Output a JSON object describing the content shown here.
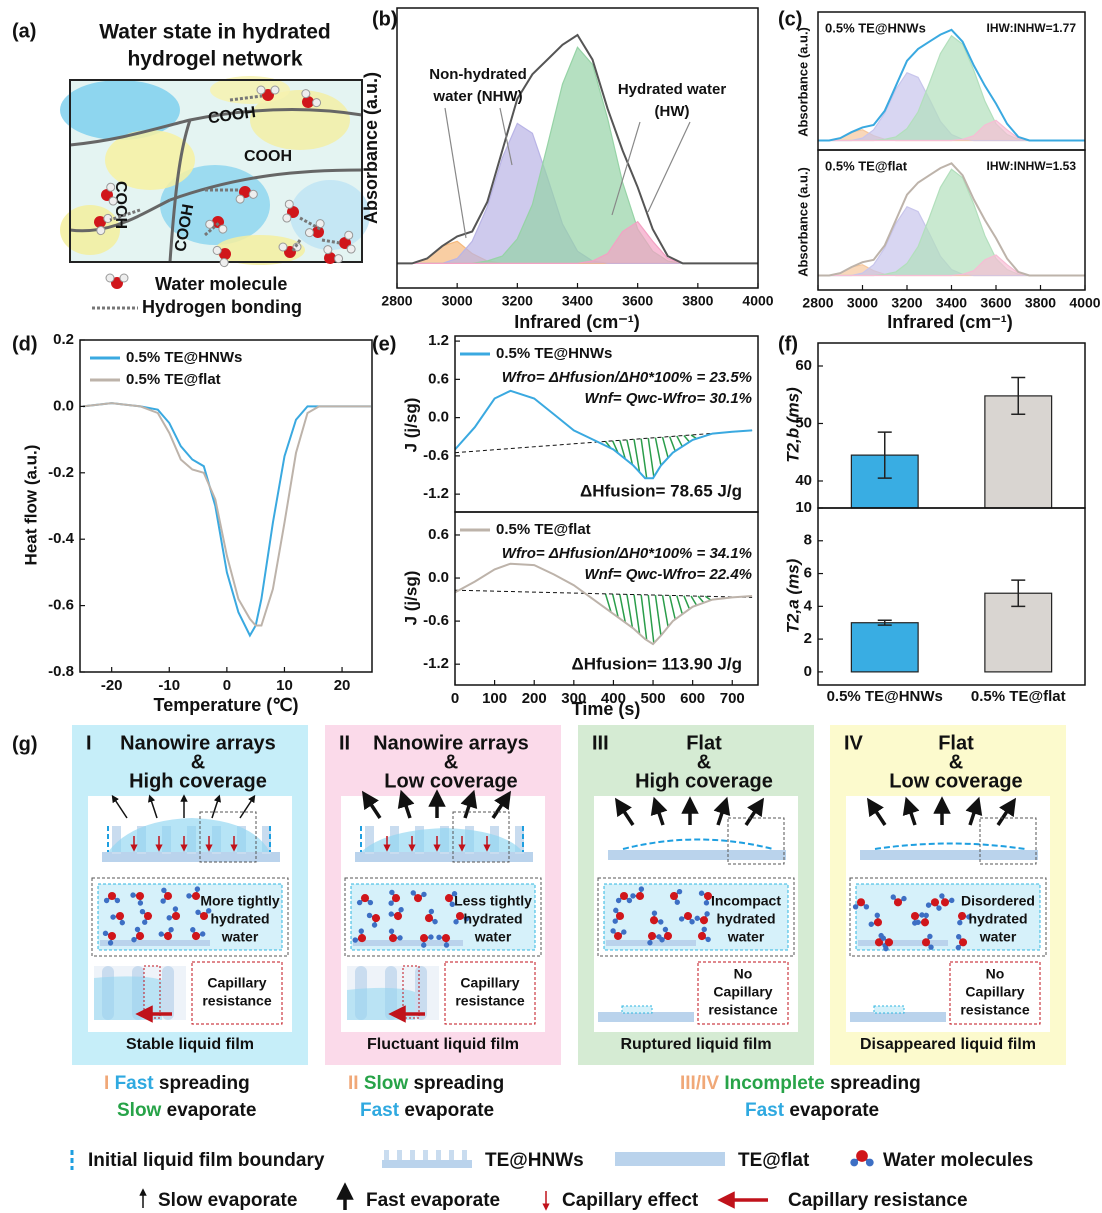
{
  "panel_labels": [
    "(a)",
    "(b)",
    "(c)",
    "(d)",
    "(e)",
    "(f)",
    "(g)"
  ],
  "network": {
    "title": [
      "Water state in hydrated",
      "hydrogel network"
    ],
    "groups": [
      "COOH",
      "COOH",
      "COOH",
      "COOH"
    ],
    "legend": [
      "Water molecule",
      "Hydrogen bonding"
    ]
  },
  "chart_data": [
    {
      "type": "spectrum",
      "x_label": "Infrared (cm⁻¹)",
      "y_label": "Absorbance (a.u.)",
      "x": [
        2800,
        2850,
        2900,
        2950,
        3000,
        3050,
        3100,
        3150,
        3200,
        3250,
        3300,
        3350,
        3400,
        3450,
        3500,
        3550,
        3600,
        3650,
        3700,
        3750,
        3800,
        3850,
        3900,
        3950,
        4000
      ],
      "xlim": [
        2800,
        4000
      ],
      "xticks": [
        2800,
        3000,
        3200,
        3400,
        3600,
        3800,
        4000
      ],
      "ylim": [
        -0.1,
        1.04
      ],
      "series": [
        {
          "color": "#f6b97c",
          "values": [
            0,
            0,
            0.02,
            0.07,
            0.09,
            0.04,
            0.01,
            0,
            0,
            0,
            0,
            0,
            0,
            0,
            0,
            0,
            0,
            0,
            0,
            0,
            0,
            0,
            0,
            0,
            0
          ]
        },
        {
          "color": "#b9b4e6",
          "values": [
            0,
            0,
            0,
            0,
            0.02,
            0.09,
            0.23,
            0.43,
            0.57,
            0.53,
            0.35,
            0.16,
            0.05,
            0.01,
            0,
            0,
            0,
            0,
            0,
            0,
            0,
            0,
            0,
            0,
            0
          ]
        },
        {
          "color": "#96d3a6",
          "values": [
            0,
            0,
            0,
            0,
            0,
            0,
            0.01,
            0.03,
            0.1,
            0.24,
            0.48,
            0.73,
            0.88,
            0.81,
            0.59,
            0.33,
            0.14,
            0.05,
            0.01,
            0,
            0,
            0,
            0,
            0,
            0
          ]
        },
        {
          "color": "#f3a2c4",
          "values": [
            0,
            0,
            0,
            0,
            0,
            0,
            0,
            0,
            0,
            0,
            0,
            0,
            0,
            0.01,
            0.04,
            0.13,
            0.17,
            0.09,
            0.02,
            0,
            0,
            0,
            0,
            0,
            0
          ]
        }
      ],
      "total": {
        "color": "#555555",
        "values": [
          0,
          0,
          0.02,
          0.07,
          0.11,
          0.13,
          0.25,
          0.46,
          0.67,
          0.77,
          0.83,
          0.89,
          0.93,
          0.83,
          0.63,
          0.46,
          0.31,
          0.14,
          0.03,
          0,
          0,
          0,
          0,
          0,
          0
        ]
      },
      "annotations": [
        [
          "Non-hydrated",
          "water (NHW)"
        ],
        [
          "Hydrated water",
          "(HW)"
        ]
      ]
    },
    {
      "type": "spectrum",
      "y_label": "Absorbance (a.u.)",
      "x": [
        2800,
        2850,
        2900,
        2950,
        3000,
        3050,
        3100,
        3150,
        3200,
        3250,
        3300,
        3350,
        3400,
        3450,
        3500,
        3550,
        3600,
        3650,
        3700,
        3750,
        3800,
        3850,
        3900,
        3950,
        4000
      ],
      "xlim": [
        2800,
        4000
      ],
      "ylim": [
        -0.08,
        1.08
      ],
      "series": [
        {
          "color": "#f6c79c",
          "values": [
            0,
            0,
            0.02,
            0.07,
            0.09,
            0.04,
            0.01,
            0,
            0,
            0,
            0,
            0,
            0,
            0,
            0,
            0,
            0,
            0,
            0,
            0,
            0,
            0,
            0,
            0,
            0
          ]
        },
        {
          "color": "#c8c5ec",
          "values": [
            0,
            0,
            0,
            0,
            0.02,
            0.09,
            0.23,
            0.43,
            0.57,
            0.53,
            0.35,
            0.16,
            0.05,
            0.01,
            0,
            0,
            0,
            0,
            0,
            0,
            0,
            0,
            0,
            0,
            0
          ]
        },
        {
          "color": "#b2dfbc",
          "values": [
            0,
            0,
            0,
            0,
            0,
            0,
            0.01,
            0.03,
            0.1,
            0.24,
            0.48,
            0.73,
            0.88,
            0.81,
            0.59,
            0.33,
            0.14,
            0.05,
            0.01,
            0,
            0,
            0,
            0,
            0,
            0
          ]
        },
        {
          "color": "#f6bdd4",
          "values": [
            0,
            0,
            0,
            0,
            0,
            0,
            0,
            0,
            0,
            0,
            0,
            0,
            0,
            0.01,
            0.04,
            0.13,
            0.17,
            0.09,
            0.02,
            0,
            0,
            0,
            0,
            0,
            0
          ]
        }
      ],
      "total": {
        "color": "#3aa9e0",
        "values": [
          0,
          0,
          0.02,
          0.07,
          0.11,
          0.13,
          0.25,
          0.46,
          0.67,
          0.77,
          0.83,
          0.89,
          0.93,
          0.83,
          0.63,
          0.46,
          0.31,
          0.14,
          0.03,
          0,
          0,
          0,
          0,
          0,
          0
        ]
      },
      "annotations": [
        [
          "0.5% TE@HNWs"
        ],
        [
          "IHW:INHW=1.77"
        ]
      ]
    },
    {
      "type": "spectrum",
      "x_label": "Infrared (cm⁻¹)",
      "y_label": "Absorbance (a.u.)",
      "x": [
        2800,
        2850,
        2900,
        2950,
        3000,
        3050,
        3100,
        3150,
        3200,
        3250,
        3300,
        3350,
        3400,
        3450,
        3500,
        3550,
        3600,
        3650,
        3700,
        3750,
        3800,
        3850,
        3900,
        3950,
        4000
      ],
      "xlim": [
        2800,
        4000
      ],
      "xticks": [
        2800,
        3000,
        3200,
        3400,
        3600,
        3800,
        4000
      ],
      "ylim": [
        -0.12,
        1.04
      ],
      "series": [
        {
          "color": "#f6c79c",
          "values": [
            0,
            0,
            0.02,
            0.07,
            0.09,
            0.04,
            0.01,
            0,
            0,
            0,
            0,
            0,
            0,
            0,
            0,
            0,
            0,
            0,
            0,
            0,
            0,
            0,
            0,
            0,
            0
          ]
        },
        {
          "color": "#c8c5ec",
          "values": [
            0,
            0,
            0,
            0,
            0.02,
            0.09,
            0.23,
            0.43,
            0.57,
            0.53,
            0.35,
            0.16,
            0.05,
            0.01,
            0,
            0,
            0,
            0,
            0,
            0,
            0,
            0,
            0,
            0,
            0
          ]
        },
        {
          "color": "#b2dfbc",
          "values": [
            0,
            0,
            0,
            0,
            0,
            0,
            0.01,
            0.03,
            0.1,
            0.24,
            0.48,
            0.73,
            0.88,
            0.81,
            0.59,
            0.33,
            0.14,
            0.05,
            0.01,
            0,
            0,
            0,
            0,
            0,
            0
          ]
        },
        {
          "color": "#f6bdd4",
          "values": [
            0,
            0,
            0,
            0,
            0,
            0,
            0,
            0,
            0,
            0,
            0,
            0,
            0,
            0.01,
            0.04,
            0.13,
            0.17,
            0.09,
            0.02,
            0,
            0,
            0,
            0,
            0,
            0
          ]
        }
      ],
      "total": {
        "color": "#bdb3aa",
        "values": [
          0,
          0,
          0.02,
          0.07,
          0.11,
          0.13,
          0.25,
          0.46,
          0.67,
          0.77,
          0.83,
          0.89,
          0.93,
          0.83,
          0.63,
          0.46,
          0.31,
          0.14,
          0.03,
          0,
          0,
          0,
          0,
          0,
          0
        ]
      },
      "annotations": [
        [
          "0.5% TE@flat"
        ],
        [
          "IHW:INHW=1.53"
        ]
      ]
    },
    {
      "type": "line",
      "x_label": "Temperature (℃)",
      "y_label": "Heat flow (a.u.)",
      "x": [
        -25,
        -20,
        -15,
        -12,
        -10,
        -8,
        -6,
        -4,
        -2,
        0,
        2,
        4,
        5,
        6,
        8,
        10,
        12,
        14,
        16,
        20,
        25
      ],
      "xlim": [
        -25.5,
        25.2
      ],
      "xticks": [
        -20,
        -10,
        0,
        10,
        20
      ],
      "ylim": [
        -0.8,
        0.2
      ],
      "yticks": [
        0.2,
        {
          "value": 0,
          "label": "0.0"
        },
        -0.2,
        -0.4,
        -0.6,
        -0.8
      ],
      "series": [
        {
          "name": "0.5% TE@HNWs",
          "color": "#3aa9e0",
          "values": [
            0,
            0.01,
            0,
            -0.01,
            -0.05,
            -0.12,
            -0.16,
            -0.18,
            -0.3,
            -0.5,
            -0.62,
            -0.69,
            -0.66,
            -0.58,
            -0.35,
            -0.15,
            -0.04,
            0,
            0,
            0,
            0
          ]
        },
        {
          "name": "0.5% TE@flat",
          "color": "#bdb3aa",
          "values": [
            0,
            0.01,
            0,
            -0.02,
            -0.08,
            -0.16,
            -0.19,
            -0.2,
            -0.28,
            -0.45,
            -0.58,
            -0.64,
            -0.66,
            -0.66,
            -0.55,
            -0.35,
            -0.14,
            -0.02,
            0,
            0,
            0
          ]
        }
      ]
    },
    {
      "type": "line",
      "y_label": "J (j/sg)",
      "x": [
        0,
        50,
        100,
        140,
        200,
        250,
        300,
        350,
        400,
        450,
        480,
        500,
        520,
        550,
        600,
        650,
        700,
        750
      ],
      "xlim": [
        0,
        765
      ],
      "ylim": [
        -1.48,
        1.28
      ],
      "yticks": [
        1.2,
        0.6,
        {
          "value": 0,
          "label": "0.0"
        },
        -0.6,
        -1.2
      ],
      "series": [
        {
          "name": "0.5% TE@HNWs",
          "color": "#3aa9e0",
          "values": [
            -0.5,
            -0.15,
            0.3,
            0.42,
            0.3,
            0.05,
            -0.2,
            -0.35,
            -0.5,
            -0.75,
            -0.95,
            -0.95,
            -0.75,
            -0.55,
            -0.35,
            -0.25,
            -0.22,
            -0.2
          ]
        }
      ],
      "baseline": {
        "x": [
          0,
          750
        ],
        "values": [
          -0.55,
          -0.2
        ]
      },
      "hatch_color": "#2a9d4a",
      "annotations": [
        "Wfro= ΔHfusion/ΔH0*100% = 23.5%",
        "Wnf= Qwc-Wfro= 30.1%",
        "ΔHfusion= 78.65 J/g"
      ]
    },
    {
      "type": "line",
      "x_label": "Time (s)",
      "y_label": "J (j/sg)",
      "x": [
        0,
        50,
        100,
        140,
        200,
        250,
        300,
        350,
        400,
        450,
        480,
        500,
        520,
        550,
        600,
        650,
        700,
        750
      ],
      "xlim": [
        0,
        765
      ],
      "xticks": [
        0,
        100,
        200,
        300,
        400,
        500,
        600,
        700
      ],
      "ylim": [
        -1.49,
        0.92
      ],
      "yticks": [
        0.6,
        {
          "value": 0,
          "label": "0.0"
        },
        -0.6,
        -1.2
      ],
      "series": [
        {
          "name": "0.5% TE@flat",
          "color": "#bdb3aa",
          "values": [
            -0.2,
            -0.05,
            0.12,
            0.2,
            0.18,
            0.05,
            -0.1,
            -0.3,
            -0.5,
            -0.7,
            -0.85,
            -0.92,
            -0.8,
            -0.6,
            -0.4,
            -0.3,
            -0.27,
            -0.25
          ]
        }
      ],
      "baseline": {
        "x": [
          0,
          750
        ],
        "values": [
          -0.17,
          -0.27
        ]
      },
      "hatch_color": "#2a9d4a",
      "annotations": [
        "Wfro= ΔHfusion/ΔH0*100% = 34.1%",
        "Wnf= Qwc-Wfro= 22.4%",
        "ΔHfusion= 113.90 J/g"
      ]
    },
    {
      "type": "bar",
      "y_label": "T2,b (ms)",
      "values": [
        44.5,
        54.8
      ],
      "errors": [
        4,
        3.2
      ],
      "colors": [
        "#39ade3",
        "#d9d5d1"
      ],
      "ylim": [
        35.3,
        64
      ],
      "yticks": [
        40,
        50,
        60
      ]
    },
    {
      "type": "bar",
      "y_label": "T2,a (ms)",
      "categories": [
        "0.5% TE@HNWs",
        "0.5% TE@flat"
      ],
      "values": [
        3.0,
        4.8
      ],
      "errors": [
        0.15,
        0.8
      ],
      "colors": [
        "#39ade3",
        "#d9d5d1"
      ],
      "ylim": [
        -0.8,
        10
      ],
      "yticks": [
        0,
        2,
        4,
        6,
        8,
        10
      ]
    }
  ],
  "schematic": {
    "panels": [
      {
        "numeral": "I",
        "title": [
          "Nanowire arrays",
          "&",
          "High coverage"
        ],
        "water": [
          "More tightly",
          "hydrated",
          "water"
        ],
        "capillary": [
          "Capillary",
          "resistance"
        ],
        "caption": "Stable liquid film",
        "bg": "#c6eef9"
      },
      {
        "numeral": "II",
        "title": [
          "Nanowire arrays",
          "&",
          "Low coverage"
        ],
        "water": [
          "Less tightly",
          "hydrated",
          "water"
        ],
        "capillary": [
          "Capillary",
          "resistance"
        ],
        "caption": "Fluctuant liquid film",
        "bg": "#fbdaea"
      },
      {
        "numeral": "III",
        "title": [
          "Flat",
          "&",
          "High coverage"
        ],
        "water": [
          "Incompact",
          "hydrated",
          "water"
        ],
        "capillary": [
          "No",
          "Capillary",
          "resistance"
        ],
        "caption": "Ruptured liquid film",
        "bg": "#d5ebd3"
      },
      {
        "numeral": "IV",
        "title": [
          "Flat",
          "&",
          "Low coverage"
        ],
        "water": [
          "Disordered",
          "hydrated",
          "water"
        ],
        "capillary": [
          "No",
          "Capillary",
          "resistance"
        ],
        "caption": "Disappeared liquid film",
        "bg": "#fcfacd"
      }
    ],
    "summary": [
      {
        "numeral": "I",
        "lines": [
          [
            {
              "text": "Fast",
              "color": "#2fa9e0"
            },
            {
              "text": "spreading",
              "color": "#111111"
            }
          ],
          [
            {
              "text": "Slow",
              "color": "#27a348"
            },
            {
              "text": "evaporate",
              "color": "#111111"
            }
          ]
        ]
      },
      {
        "numeral": "II",
        "lines": [
          [
            {
              "text": "Slow",
              "color": "#27a348"
            },
            {
              "text": "spreading",
              "color": "#111111"
            }
          ],
          [
            {
              "text": "Fast",
              "color": "#2fa9e0"
            },
            {
              "text": "evaporate",
              "color": "#111111"
            }
          ]
        ]
      },
      {
        "numeral": "III/IV",
        "lines": [
          [
            {
              "text": "Incomplete",
              "color": "#27a348"
            },
            {
              "text": "spreading",
              "color": "#111111"
            }
          ],
          [
            {
              "text": "Fast",
              "color": "#2fa9e0"
            },
            {
              "text": "evaporate",
              "color": "#111111"
            }
          ]
        ]
      }
    ],
    "legend": [
      "Initial liquid film boundary",
      "TE@HNWs",
      "TE@flat",
      "Water molecules",
      "Slow evaporate",
      "Fast evaporate",
      "Capillary effect",
      "Capillary resistance"
    ]
  }
}
